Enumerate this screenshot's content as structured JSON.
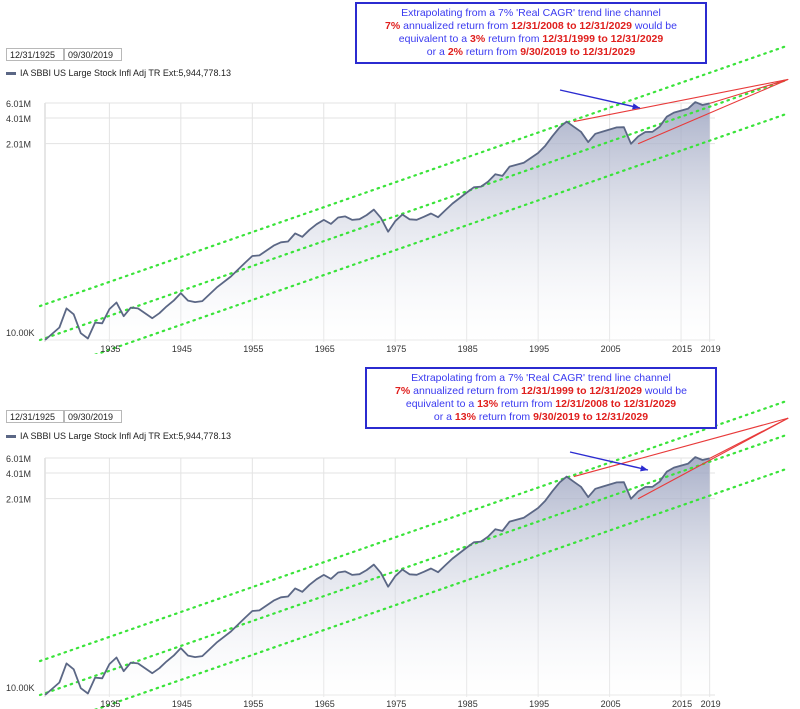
{
  "chart_data": [
    {
      "type": "area",
      "series": [
        {
          "name": "IA SBBI US Large Stock Infl Adj TR Ext:5,944,778.13"
        }
      ],
      "x": [
        1926,
        1928,
        1929,
        1930,
        1931,
        1932,
        1933,
        1934,
        1935,
        1936,
        1937,
        1938,
        1939,
        1941,
        1942,
        1943,
        1944,
        1945,
        1946,
        1947,
        1948,
        1950,
        1952,
        1954,
        1955,
        1956,
        1958,
        1959,
        1960,
        1961,
        1962,
        1963,
        1964,
        1965,
        1966,
        1967,
        1968,
        1969,
        1970,
        1971,
        1972,
        1973,
        1974,
        1975,
        1976,
        1977,
        1978,
        1979,
        1980,
        1981,
        1982,
        1983,
        1985,
        1986,
        1987,
        1988,
        1989,
        1990,
        1991,
        1993,
        1995,
        1996,
        1997,
        1998,
        1999,
        2000,
        2001,
        2002,
        2003,
        2004,
        2006,
        2007,
        2008,
        2009,
        2010,
        2011,
        2012,
        2013,
        2014,
        2016,
        2017,
        2018,
        2019
      ],
      "values": [
        10000,
        14000,
        23500,
        20000,
        12000,
        10400,
        16000,
        15700,
        23000,
        27500,
        19000,
        24000,
        23500,
        18000,
        20600,
        24800,
        29000,
        35500,
        29000,
        27800,
        28600,
        41200,
        55600,
        80900,
        96500,
        98200,
        128000,
        140000,
        143000,
        178000,
        162000,
        196000,
        228000,
        256000,
        230000,
        273000,
        281000,
        256000,
        261000,
        291000,
        338000,
        270000,
        186000,
        247000,
        296000,
        260000,
        257000,
        278000,
        304000,
        275000,
        331000,
        398000,
        535000,
        618000,
        629000,
        720000,
        880000,
        840000,
        1080000,
        1200000,
        1560000,
        1900000,
        2450000,
        3110000,
        3640000,
        3160000,
        2760000,
        2090000,
        2620000,
        2780000,
        3110000,
        3130000,
        2000000,
        2440000,
        2750000,
        2760000,
        3170000,
        4150000,
        4640000,
        5170000,
        6150000,
        5700000,
        5944778
      ],
      "y_ticks": [
        "10.00K",
        "2.01M",
        "4.01M",
        "6.01M"
      ],
      "x_ticks": [
        "1935",
        "1945",
        "1955",
        "1965",
        "1975",
        "1985",
        "1995",
        "2005",
        "2015",
        "2019"
      ],
      "xlim": [
        1925.99,
        2019.75
      ],
      "ylim": [
        10000,
        6010000
      ],
      "trend_channel_offsets": [
        0.4,
        1.0,
        2.5
      ],
      "projection_end_year": 2029.99,
      "projection": {
        "from_year": 2008.99,
        "from_value": 2000000,
        "upper_from_year": 1999.99,
        "upper_from_value": 3640000
      },
      "date_start": "12/31/1925",
      "date_end": "09/30/2019",
      "callout": {
        "line1": "Extrapolating from a 7% 'Real CAGR' trend line channel",
        "line2_a": "7%",
        "line2_b": " annualized return from ",
        "line2_c": "12/31/2008 to 12/31/2029",
        "line2_d": " would be",
        "line3_a": "equivalent to a ",
        "line3_b": "3%",
        "line3_c": " return from ",
        "line3_d": "12/31/1999 to 12/31/2029",
        "line4_a": "or a ",
        "line4_b": "2%",
        "line4_c": " return from ",
        "line4_d": "9/30/2019 to 12/31/2029"
      }
    },
    {
      "type": "area",
      "series": [
        {
          "name": "IA SBBI US Large Stock Infl Adj TR Ext:5,944,778.13"
        }
      ],
      "y_ticks": [
        "10.00K",
        "2.01M",
        "4.01M",
        "6.01M"
      ],
      "x_ticks": [
        "1935",
        "1945",
        "1955",
        "1965",
        "1975",
        "1985",
        "1995",
        "2005",
        "2015",
        "2019"
      ],
      "date_start": "12/31/1925",
      "date_end": "09/30/2019",
      "callout": {
        "line1": "Extrapolating from a 7% 'Real CAGR' trend line channel",
        "line2_a": "7%",
        "line2_b": " annualized return from ",
        "line2_c": "12/31/1999 to 12/31/2029",
        "line2_d": " would be",
        "line3_a": "equivalent to a ",
        "line3_b": "13%",
        "line3_c": " return from ",
        "line3_d": "12/31/2008 to 12/31/2029",
        "line4_a": "or a ",
        "line4_b": "13%",
        "line4_c": " return from ",
        "line4_d": "9/30/2019 to 12/31/2029"
      }
    }
  ],
  "colors": {
    "line": "#5b6785",
    "fill_top": "#9aa2bf",
    "trend": "#39e339",
    "projection": "#e83a3a",
    "grid": "#e3e3e3",
    "callout_border": "#2b2bd0",
    "arrow": "#2b2bd0"
  }
}
